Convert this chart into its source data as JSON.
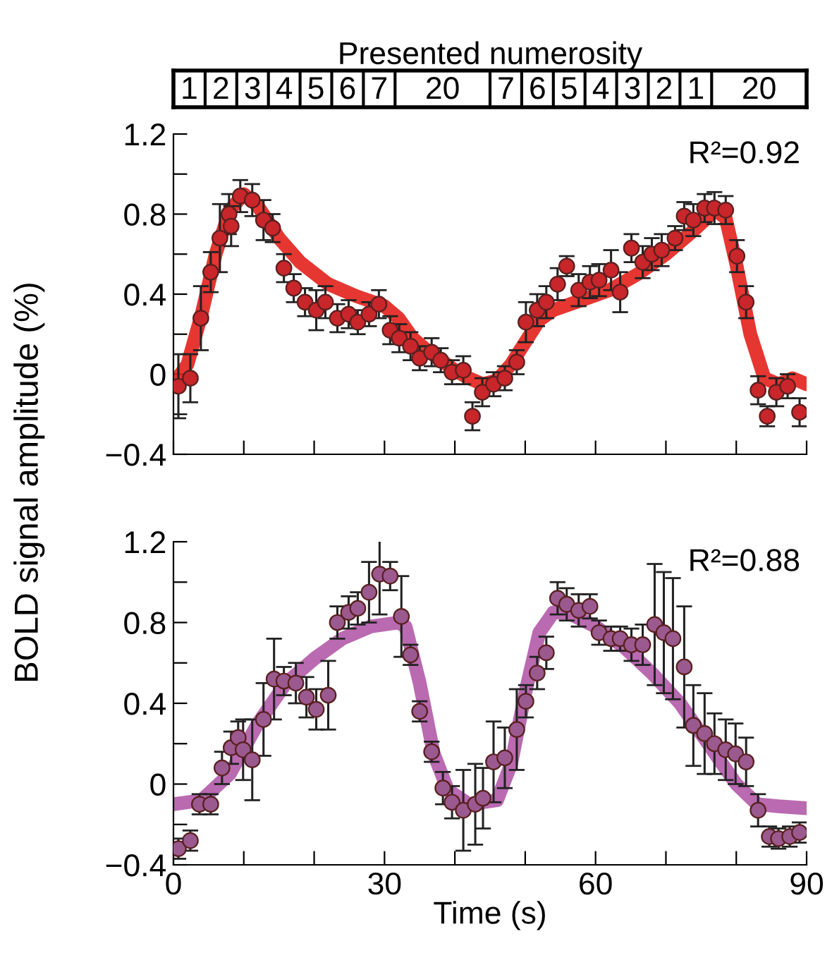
{
  "chart_data": [
    {
      "type": "scatter",
      "ylabel": "BOLD signal amplitude (%)",
      "title": "Presented numerosity",
      "xlim": [
        0,
        90
      ],
      "xticks": [
        0,
        {
          "value": 10,
          "label": null
        },
        {
          "value": 20,
          "label": null
        },
        30,
        {
          "value": 40,
          "label": null
        },
        {
          "value": 50,
          "label": null
        },
        60,
        {
          "value": 70,
          "label": null
        },
        {
          "value": 80,
          "label": null
        },
        90
      ],
      "ylim": [
        -0.4,
        1.2
      ],
      "yticks": [
        {
          "value": -0.4,
          "label": "−0.4"
        },
        {
          "value": -0.2,
          "label": null
        },
        0,
        {
          "value": 0.2,
          "label": null
        },
        0.4,
        {
          "value": 0.6,
          "label": null
        },
        0.8,
        {
          "value": 1.0,
          "label": null
        },
        1.2
      ],
      "tick_labels": "y",
      "annotations": [
        "1",
        "2",
        "3",
        "4",
        "5",
        "6",
        "7",
        "20",
        "7",
        "6",
        "5",
        "4",
        "3",
        "2",
        "1",
        "20",
        "R²=0.92"
      ],
      "series": [
        {
          "type": "line",
          "color": "#e3201c",
          "x": [
            0,
            2,
            4,
            6,
            8,
            10,
            12,
            15,
            18,
            22,
            26,
            30,
            32,
            34,
            36,
            38,
            40,
            42,
            44,
            46,
            48,
            50,
            52,
            54,
            58,
            62,
            66,
            70,
            74,
            77,
            78.5,
            80,
            82,
            84,
            86,
            88,
            90
          ],
          "values": [
            -0.05,
            0.05,
            0.3,
            0.6,
            0.82,
            0.9,
            0.84,
            0.68,
            0.56,
            0.45,
            0.39,
            0.34,
            0.28,
            0.18,
            0.12,
            0.07,
            0.02,
            -0.02,
            -0.05,
            -0.03,
            0.05,
            0.16,
            0.27,
            0.32,
            0.37,
            0.42,
            0.5,
            0.6,
            0.72,
            0.82,
            0.78,
            0.55,
            0.2,
            -0.02,
            -0.05,
            -0.02,
            -0.05
          ]
        },
        {
          "marker": "circle",
          "color": "#c8262a",
          "x": [
            0.7,
            2.4,
            3.9,
            5.3,
            6.6,
            7.9,
            8.2,
            9.5,
            11.2,
            12.8,
            14.1,
            15.7,
            17.1,
            18.7,
            20.3,
            21.6,
            23.3,
            24.9,
            26.2,
            27.8,
            29.2,
            30.8,
            32.1,
            33.7,
            35.0,
            36.7,
            38.0,
            39.6,
            41.2,
            42.5,
            43.9,
            45.5,
            47.1,
            48.8,
            50.1,
            51.7,
            53.0,
            54.6,
            55.9,
            57.6,
            59.2,
            60.5,
            62.2,
            63.5,
            65.1,
            66.7,
            68.0,
            69.4,
            71.3,
            72.6,
            73.9,
            75.5,
            76.9,
            78.5,
            80.1,
            81.4,
            83.1,
            84.4,
            85.7,
            87.3,
            89.0
          ],
          "values": [
            -0.06,
            -0.02,
            0.28,
            0.51,
            0.68,
            0.8,
            0.74,
            0.89,
            0.87,
            0.77,
            0.73,
            0.53,
            0.43,
            0.36,
            0.32,
            0.36,
            0.28,
            0.3,
            0.26,
            0.3,
            0.35,
            0.22,
            0.18,
            0.14,
            0.08,
            0.11,
            0.07,
            0.01,
            0.02,
            -0.21,
            -0.09,
            -0.05,
            -0.02,
            0.06,
            0.26,
            0.32,
            0.36,
            0.45,
            0.54,
            0.42,
            0.46,
            0.47,
            0.52,
            0.41,
            0.63,
            0.56,
            0.6,
            0.62,
            0.68,
            0.79,
            0.77,
            0.83,
            0.83,
            0.82,
            0.59,
            0.36,
            -0.08,
            -0.21,
            -0.09,
            -0.06,
            -0.19
          ],
          "errors": [
            0.16,
            0.12,
            0.16,
            0.1,
            0.17,
            0.1,
            0.1,
            0.08,
            0.08,
            0.1,
            0.07,
            0.07,
            0.07,
            0.07,
            0.1,
            0.08,
            0.07,
            0.07,
            0.06,
            0.06,
            0.07,
            0.07,
            0.07,
            0.07,
            0.06,
            0.07,
            0.06,
            0.06,
            0.07,
            0.07,
            0.07,
            0.06,
            0.06,
            0.06,
            0.1,
            0.08,
            0.08,
            0.08,
            0.05,
            0.08,
            0.08,
            0.08,
            0.1,
            0.1,
            0.07,
            0.08,
            0.08,
            0.08,
            0.06,
            0.07,
            0.08,
            0.07,
            0.08,
            0.07,
            0.08,
            0.08,
            0.07,
            0.05,
            0.07,
            0.06,
            0.07
          ]
        }
      ]
    },
    {
      "type": "scatter",
      "xlabel": "Time (s)",
      "xlim": [
        0,
        90
      ],
      "xticks": [
        0,
        {
          "value": 10,
          "label": null
        },
        {
          "value": 20,
          "label": null
        },
        30,
        {
          "value": 40,
          "label": null
        },
        {
          "value": 50,
          "label": null
        },
        60,
        {
          "value": 70,
          "label": null
        },
        {
          "value": 80,
          "label": null
        },
        90
      ],
      "ylim": [
        -0.4,
        1.2
      ],
      "yticks": [
        {
          "value": -0.4,
          "label": "−0.4"
        },
        {
          "value": -0.2,
          "label": null
        },
        0,
        {
          "value": 0.2,
          "label": null
        },
        0.4,
        {
          "value": 0.6,
          "label": null
        },
        0.8,
        {
          "value": 1.0,
          "label": null
        },
        1.2
      ],
      "annotations": [
        "R²=0.88"
      ],
      "series": [
        {
          "type": "line",
          "color": "#b25aa8",
          "x": [
            0,
            4,
            8,
            12,
            16,
            20,
            24,
            28,
            32,
            33,
            35,
            37,
            39,
            42,
            46,
            48,
            50,
            52,
            54,
            56,
            60,
            64,
            68,
            72,
            76,
            80,
            83,
            86,
            90
          ],
          "values": [
            -0.1,
            -0.08,
            0.05,
            0.3,
            0.5,
            0.62,
            0.72,
            0.78,
            0.8,
            0.78,
            0.5,
            0.15,
            -0.03,
            -0.1,
            -0.08,
            0.1,
            0.45,
            0.75,
            0.85,
            0.85,
            0.78,
            0.68,
            0.55,
            0.4,
            0.2,
            0.0,
            -0.1,
            -0.11,
            -0.12
          ]
        },
        {
          "marker": "circle",
          "color": "#9a5a8f",
          "x": [
            0.7,
            2.4,
            3.7,
            5.3,
            6.9,
            8.2,
            9.2,
            9.9,
            11.2,
            12.8,
            14.3,
            15.7,
            17.4,
            18.9,
            20.3,
            22.0,
            23.3,
            24.9,
            26.2,
            27.8,
            29.3,
            30.8,
            32.4,
            33.7,
            35.0,
            36.7,
            38.3,
            39.6,
            41.2,
            42.9,
            44.0,
            45.5,
            47.1,
            48.8,
            50.1,
            51.7,
            53.0,
            54.6,
            55.9,
            57.6,
            59.2,
            60.5,
            62.2,
            63.5,
            65.1,
            66.7,
            68.4,
            69.7,
            71.0,
            72.6,
            73.9,
            75.5,
            76.9,
            78.5,
            79.9,
            81.4,
            83.1,
            84.7,
            86.0,
            87.6,
            89.0
          ],
          "values": [
            -0.32,
            -0.28,
            -0.1,
            -0.1,
            0.08,
            0.18,
            0.23,
            0.17,
            0.12,
            0.32,
            0.52,
            0.51,
            0.5,
            0.43,
            0.37,
            0.44,
            0.8,
            0.85,
            0.87,
            0.95,
            1.04,
            1.03,
            0.83,
            0.64,
            0.36,
            0.16,
            -0.02,
            -0.09,
            -0.13,
            -0.1,
            -0.07,
            0.11,
            0.13,
            0.27,
            0.41,
            0.55,
            0.65,
            0.92,
            0.89,
            0.86,
            0.88,
            0.75,
            0.72,
            0.72,
            0.69,
            0.69,
            0.79,
            0.75,
            0.72,
            0.58,
            0.29,
            0.25,
            0.2,
            0.17,
            0.15,
            0.11,
            -0.13,
            -0.26,
            -0.27,
            -0.26,
            -0.24
          ],
          "errors": [
            0.05,
            0.05,
            0.05,
            0.05,
            0.08,
            0.08,
            0.08,
            0.15,
            0.2,
            0.18,
            0.2,
            0.07,
            0.1,
            0.1,
            0.1,
            0.17,
            0.08,
            0.08,
            0.08,
            0.15,
            0.2,
            0.07,
            0.2,
            0.05,
            0.05,
            0.05,
            0.08,
            0.08,
            0.2,
            0.2,
            0.15,
            0.2,
            0.15,
            0.2,
            0.08,
            0.08,
            0.08,
            0.08,
            0.08,
            0.08,
            0.06,
            0.06,
            0.06,
            0.06,
            0.08,
            0.1,
            0.3,
            0.3,
            0.3,
            0.3,
            0.2,
            0.2,
            0.15,
            0.15,
            0.15,
            0.12,
            0.08,
            0.05,
            0.05,
            0.05,
            0.05
          ]
        }
      ]
    }
  ]
}
